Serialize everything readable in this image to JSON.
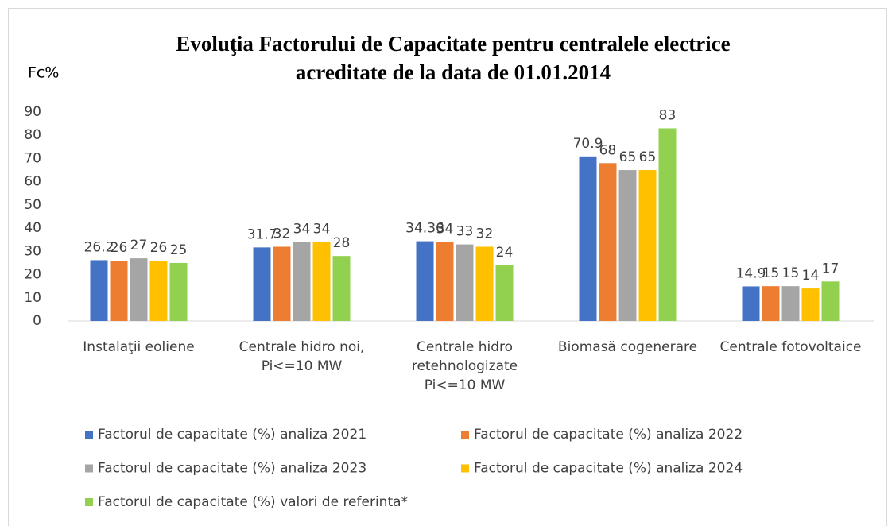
{
  "chart_data": {
    "type": "bar",
    "title": [
      "Evoluţia Factorului de Capacitate pentru centralele electrice",
      "acreditate de la data de 01.01.2014"
    ],
    "ylabel": "Fc%",
    "categories": [
      [
        "Instalaţii eoliene"
      ],
      [
        "Centrale hidro noi,",
        "Pi<=10 MW"
      ],
      [
        "Centrale hidro",
        "retehnologizate",
        "Pi<=10 MW"
      ],
      [
        "Biomasă cogenerare"
      ],
      [
        "Centrale fotovoltaice"
      ]
    ],
    "series": [
      {
        "name": "Factorul de capacitate (%) analiza 2021",
        "color": "#4472c4",
        "values": [
          26.2,
          31.7,
          34.36,
          70.9,
          14.9
        ]
      },
      {
        "name": "Factorul de capacitate (%) analiza 2022",
        "color": "#ed7d31",
        "values": [
          26,
          32,
          34,
          68,
          15
        ]
      },
      {
        "name": "Factorul de capacitate (%) analiza 2023",
        "color": "#a5a5a5",
        "values": [
          27,
          34,
          33,
          65,
          15
        ]
      },
      {
        "name": "Factorul de capacitate (%) analiza 2024",
        "color": "#ffc000",
        "values": [
          26,
          34,
          32,
          65,
          14
        ]
      },
      {
        "name": "Factorul de capacitate (%) valori de referinta*",
        "color": "#92d050",
        "values": [
          25,
          28,
          24,
          83,
          17
        ]
      }
    ],
    "ylim": [
      0,
      90
    ],
    "yticks": [
      0,
      10,
      20,
      30,
      40,
      50,
      60,
      70,
      80,
      90
    ],
    "grid": false
  }
}
